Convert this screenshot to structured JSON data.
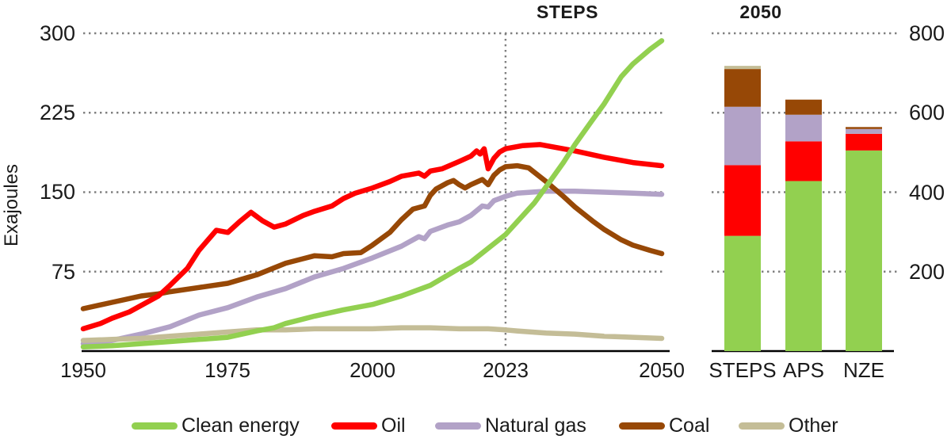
{
  "figure": {
    "y_axis_title": "Exajoules",
    "left_chart_title": "STEPS",
    "right_chart_title": "2050"
  },
  "colors": {
    "clean": "#92d050",
    "oil": "#ff0000",
    "gas": "#b2a2c7",
    "coal": "#974806",
    "other": "#c4bd97",
    "grid": "#7f7f7f",
    "axis": "#000000"
  },
  "legend": [
    {
      "key": "clean",
      "label": "Clean energy"
    },
    {
      "key": "oil",
      "label": "Oil"
    },
    {
      "key": "gas",
      "label": "Natural gas"
    },
    {
      "key": "coal",
      "label": "Coal"
    },
    {
      "key": "other",
      "label": "Other"
    }
  ],
  "chart_data": [
    {
      "type": "line",
      "title": "STEPS",
      "ylabel": "Exajoules",
      "xlim": [
        1950,
        2050
      ],
      "ylim": [
        0,
        300
      ],
      "x_ticks": [
        1950,
        1975,
        2000,
        2023,
        2050
      ],
      "y_ticks": [
        75,
        150,
        225,
        300
      ],
      "grid": "dotted-horizontal",
      "annotation_line_x": 2023,
      "series": [
        {
          "name": "Clean energy",
          "key": "clean",
          "points": [
            [
              1950,
              4
            ],
            [
              1955,
              5
            ],
            [
              1960,
              7
            ],
            [
              1965,
              9
            ],
            [
              1970,
              11
            ],
            [
              1975,
              13
            ],
            [
              1980,
              19
            ],
            [
              1983,
              22
            ],
            [
              1985,
              26
            ],
            [
              1990,
              33
            ],
            [
              1995,
              39
            ],
            [
              2000,
              44
            ],
            [
              2005,
              52
            ],
            [
              2010,
              62
            ],
            [
              2015,
              78
            ],
            [
              2017,
              84
            ],
            [
              2020,
              97
            ],
            [
              2023,
              110
            ],
            [
              2025,
              122
            ],
            [
              2028,
              140
            ],
            [
              2030,
              155
            ],
            [
              2033,
              178
            ],
            [
              2035,
              195
            ],
            [
              2038,
              218
            ],
            [
              2040,
              233
            ],
            [
              2043,
              259
            ],
            [
              2045,
              271
            ],
            [
              2048,
              285
            ],
            [
              2050,
              293
            ]
          ]
        },
        {
          "name": "Oil",
          "key": "oil",
          "points": [
            [
              1950,
              21
            ],
            [
              1953,
              26
            ],
            [
              1955,
              31
            ],
            [
              1958,
              37
            ],
            [
              1960,
              43
            ],
            [
              1963,
              52
            ],
            [
              1965,
              62
            ],
            [
              1968,
              78
            ],
            [
              1970,
              95
            ],
            [
              1973,
              114
            ],
            [
              1975,
              112
            ],
            [
              1977,
              122
            ],
            [
              1979,
              131
            ],
            [
              1981,
              123
            ],
            [
              1983,
              117
            ],
            [
              1985,
              120
            ],
            [
              1988,
              128
            ],
            [
              1990,
              132
            ],
            [
              1993,
              137
            ],
            [
              1995,
              144
            ],
            [
              1997,
              149
            ],
            [
              2000,
              154
            ],
            [
              2003,
              160
            ],
            [
              2005,
              165
            ],
            [
              2008,
              168
            ],
            [
              2009,
              165
            ],
            [
              2010,
              170
            ],
            [
              2012,
              172
            ],
            [
              2015,
              179
            ],
            [
              2017,
              184
            ],
            [
              2018,
              189
            ],
            [
              2018.6,
              186
            ],
            [
              2019.3,
              191
            ],
            [
              2020,
              172
            ],
            [
              2021,
              182
            ],
            [
              2022,
              188
            ],
            [
              2023,
              191
            ],
            [
              2026,
              194
            ],
            [
              2029,
              195
            ],
            [
              2032,
              192
            ],
            [
              2035,
              189
            ],
            [
              2040,
              183
            ],
            [
              2045,
              178
            ],
            [
              2050,
              175
            ]
          ]
        },
        {
          "name": "Natural gas",
          "key": "gas",
          "points": [
            [
              1950,
              7
            ],
            [
              1955,
              10
            ],
            [
              1960,
              16
            ],
            [
              1965,
              23
            ],
            [
              1970,
              34
            ],
            [
              1975,
              41
            ],
            [
              1980,
              51
            ],
            [
              1985,
              59
            ],
            [
              1990,
              70
            ],
            [
              1995,
              78
            ],
            [
              2000,
              88
            ],
            [
              2005,
              99
            ],
            [
              2008,
              108
            ],
            [
              2009,
              106
            ],
            [
              2010,
              113
            ],
            [
              2013,
              119
            ],
            [
              2015,
              122
            ],
            [
              2017,
              128
            ],
            [
              2019,
              137
            ],
            [
              2020,
              136
            ],
            [
              2021,
              142
            ],
            [
              2023,
              146
            ],
            [
              2025,
              149
            ],
            [
              2030,
              151
            ],
            [
              2035,
              151
            ],
            [
              2040,
              150
            ],
            [
              2045,
              149
            ],
            [
              2050,
              148
            ]
          ]
        },
        {
          "name": "Coal",
          "key": "coal",
          "points": [
            [
              1950,
              40
            ],
            [
              1955,
              46
            ],
            [
              1960,
              52
            ],
            [
              1963,
              54
            ],
            [
              1965,
              56
            ],
            [
              1970,
              60
            ],
            [
              1975,
              64
            ],
            [
              1980,
              72
            ],
            [
              1985,
              83
            ],
            [
              1990,
              90
            ],
            [
              1993,
              89
            ],
            [
              1995,
              92
            ],
            [
              1998,
              93
            ],
            [
              2000,
              100
            ],
            [
              2003,
              112
            ],
            [
              2005,
              124
            ],
            [
              2007,
              134
            ],
            [
              2009,
              137
            ],
            [
              2010,
              147
            ],
            [
              2011,
              153
            ],
            [
              2013,
              159
            ],
            [
              2014,
              161
            ],
            [
              2015,
              157
            ],
            [
              2016,
              154
            ],
            [
              2017,
              157
            ],
            [
              2019,
              162
            ],
            [
              2020,
              157
            ],
            [
              2021,
              166
            ],
            [
              2022,
              171
            ],
            [
              2023,
              174
            ],
            [
              2025,
              175
            ],
            [
              2027,
              173
            ],
            [
              2030,
              160
            ],
            [
              2033,
              146
            ],
            [
              2035,
              136
            ],
            [
              2038,
              123
            ],
            [
              2040,
              115
            ],
            [
              2043,
              105
            ],
            [
              2045,
              100
            ],
            [
              2048,
              95
            ],
            [
              2050,
              92
            ]
          ]
        },
        {
          "name": "Other",
          "key": "other",
          "points": [
            [
              1950,
              10
            ],
            [
              1955,
              11
            ],
            [
              1960,
              12
            ],
            [
              1965,
              14
            ],
            [
              1970,
              16
            ],
            [
              1975,
              18
            ],
            [
              1980,
              20
            ],
            [
              1985,
              20
            ],
            [
              1990,
              21
            ],
            [
              1995,
              21
            ],
            [
              2000,
              21
            ],
            [
              2005,
              22
            ],
            [
              2010,
              22
            ],
            [
              2015,
              21
            ],
            [
              2020,
              21
            ],
            [
              2023,
              20
            ],
            [
              2025,
              19
            ],
            [
              2030,
              17
            ],
            [
              2035,
              16
            ],
            [
              2040,
              14
            ],
            [
              2045,
              13
            ],
            [
              2050,
              12
            ]
          ]
        }
      ]
    },
    {
      "type": "bar",
      "title": "2050",
      "subtype": "stacked",
      "categories": [
        "STEPS",
        "APS",
        "NZE"
      ],
      "ylim": [
        0,
        800
      ],
      "y_ticks": [
        200,
        400,
        600,
        800
      ],
      "grid": "dotted-horizontal",
      "series": [
        {
          "name": "Clean energy",
          "key": "clean",
          "values": [
            290,
            428,
            505
          ]
        },
        {
          "name": "Oil",
          "key": "oil",
          "values": [
            178,
            100,
            42
          ]
        },
        {
          "name": "Natural gas",
          "key": "gas",
          "values": [
            147,
            67,
            12
          ]
        },
        {
          "name": "Coal",
          "key": "coal",
          "values": [
            95,
            38,
            5
          ]
        },
        {
          "name": "Other",
          "key": "other",
          "values": [
            8,
            0,
            0
          ]
        }
      ]
    }
  ]
}
